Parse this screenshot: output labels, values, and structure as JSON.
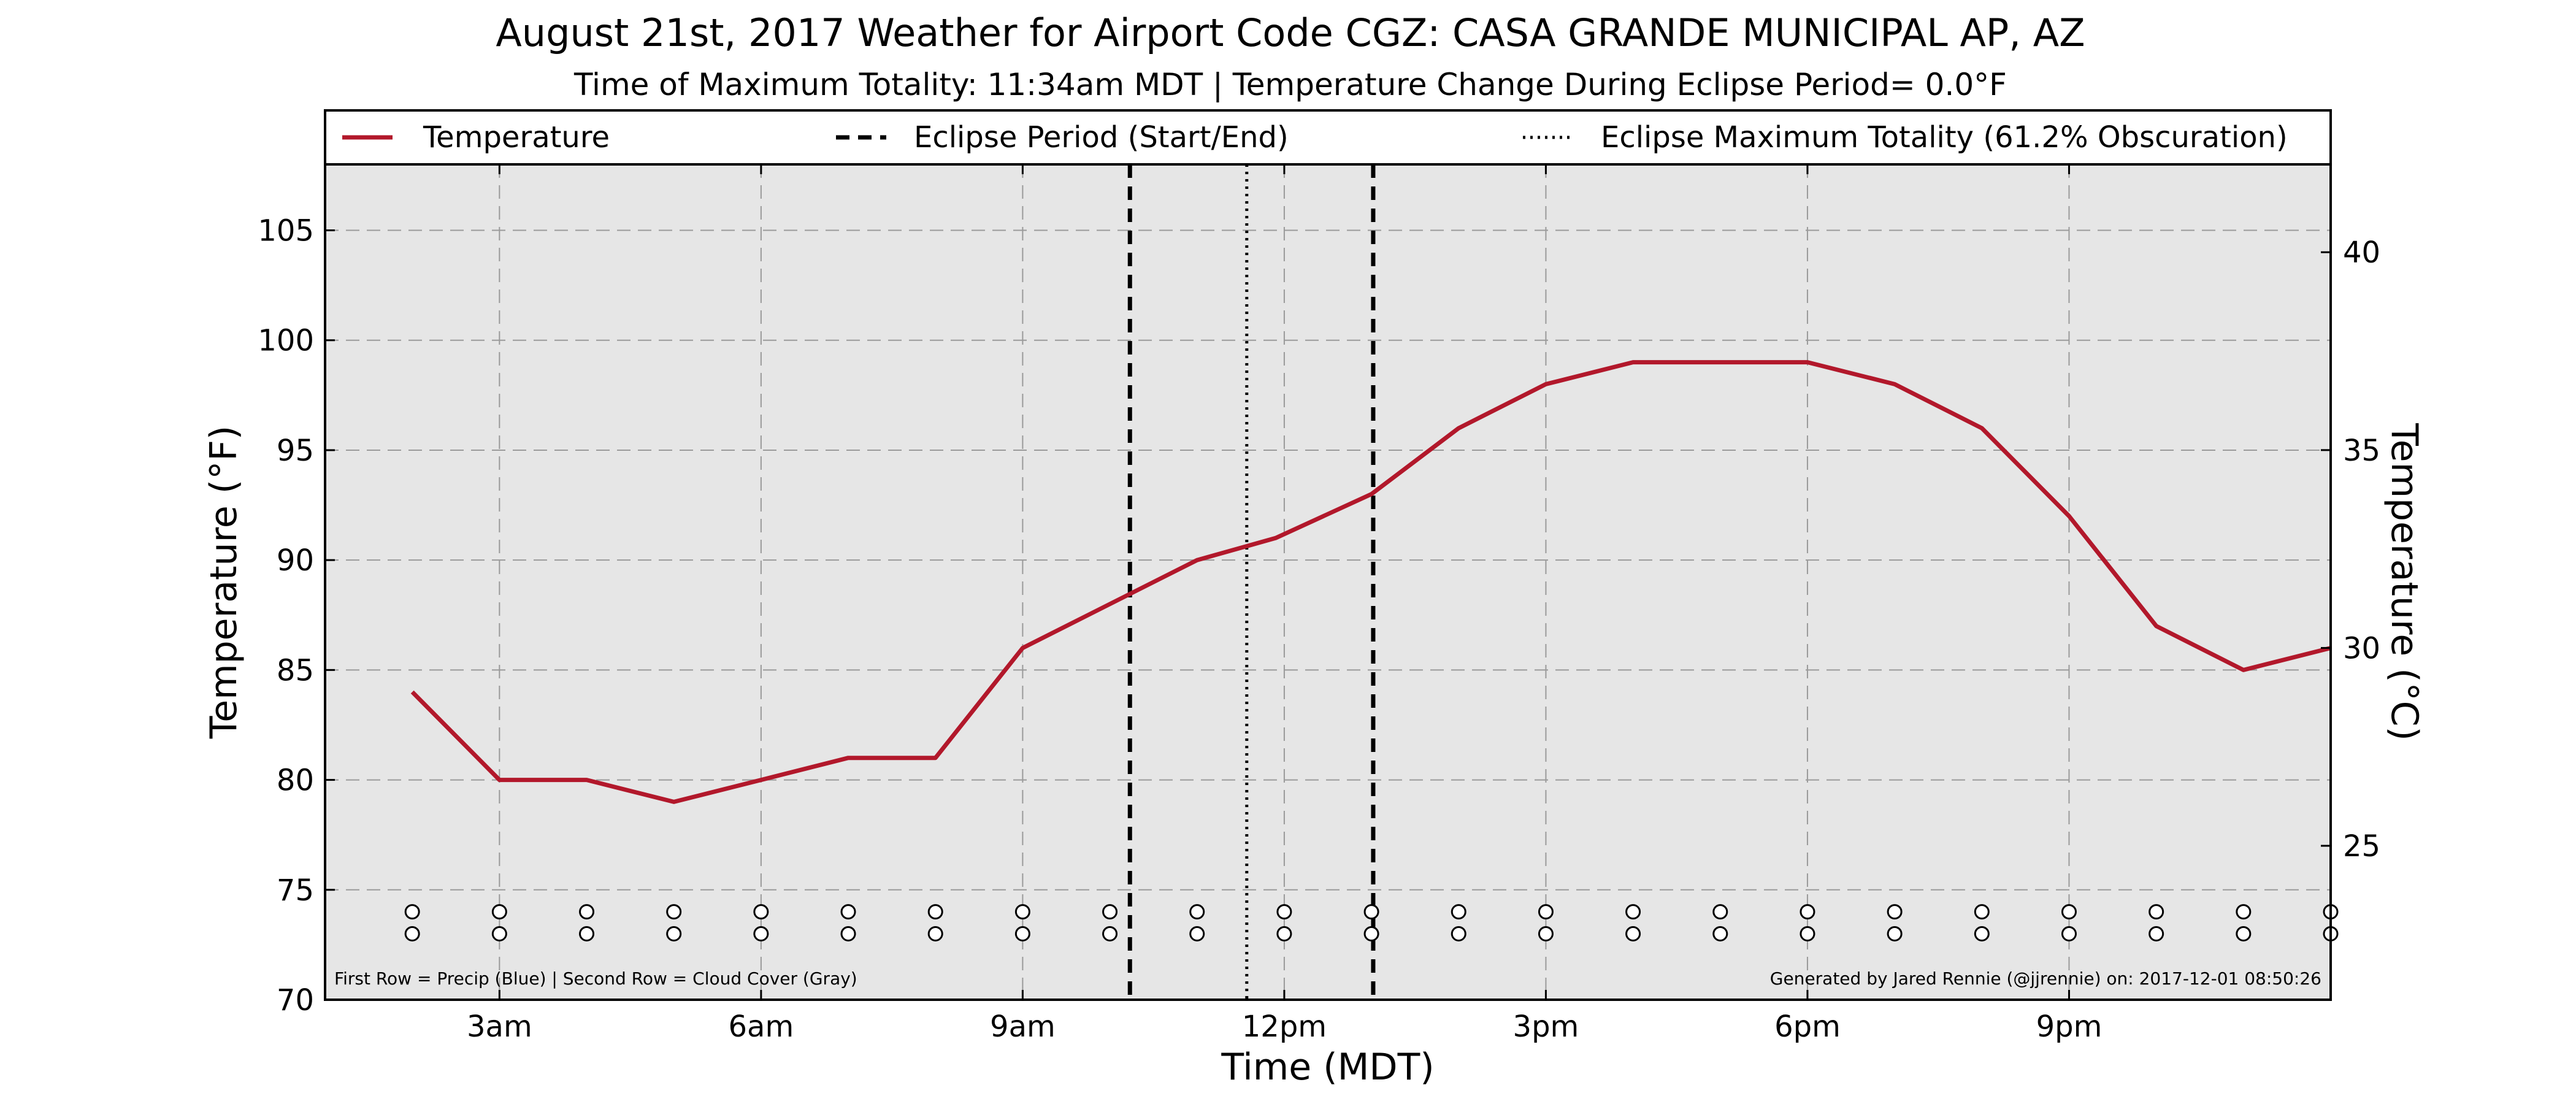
{
  "chart_data": {
    "type": "line",
    "title": "August 21st, 2017 Weather for Airport Code CGZ: CASA GRANDE MUNICIPAL AP, AZ",
    "subtitle": "Time of Maximum Totality: 11:34am MDT | Temperature Change During Eclipse Period= 0.0°F",
    "xlabel": "Time (MDT)",
    "ylabel": "Temperature (°F)",
    "ylabel_right": "Temperature (°C)",
    "xlim": [
      1.0,
      24.0
    ],
    "ylim": [
      70,
      108
    ],
    "ylim_right_c": [
      21.11,
      42.22
    ],
    "grid": true,
    "legend_position": "top",
    "x_ticks": [
      {
        "x": 3,
        "label": "3am"
      },
      {
        "x": 6,
        "label": "6am"
      },
      {
        "x": 9,
        "label": "9am"
      },
      {
        "x": 12,
        "label": "12pm"
      },
      {
        "x": 15,
        "label": "3pm"
      },
      {
        "x": 18,
        "label": "6pm"
      },
      {
        "x": 21,
        "label": "9pm"
      }
    ],
    "y_ticks": [
      70,
      75,
      80,
      85,
      90,
      95,
      100,
      105
    ],
    "y_ticks_right": [
      25,
      30,
      35,
      40
    ],
    "series": [
      {
        "name": "Temperature",
        "color": "#b2182b",
        "x": [
          2,
          3,
          4,
          5,
          6,
          7,
          8,
          9,
          11,
          11.9,
          13,
          14,
          15,
          16,
          17,
          18,
          19,
          20,
          21,
          22,
          23,
          24
        ],
        "y": [
          84,
          80,
          80,
          79,
          80,
          81,
          81,
          86,
          90,
          91,
          93,
          96,
          98,
          99,
          99,
          99,
          98,
          96,
          92,
          87,
          85,
          86
        ]
      }
    ],
    "eclipse_start": 10.23,
    "eclipse_end": 13.02,
    "eclipse_max": 11.57,
    "legend": [
      {
        "label": "Temperature",
        "style": "solid"
      },
      {
        "label": "Eclipse Period (Start/End)",
        "style": "dashed"
      },
      {
        "label": "Eclipse Maximum Totality (61.2% Obscuration)",
        "style": "dotted"
      }
    ],
    "marker_rows": {
      "x": [
        2,
        3,
        4,
        5,
        6,
        7,
        8,
        9,
        10,
        11,
        12,
        13,
        14,
        15,
        16,
        17,
        18,
        19,
        20,
        21,
        22,
        23,
        24
      ],
      "row1_y": 74.0,
      "row2_y": 73.0
    },
    "footnote_left": "First Row = Precip (Blue) | Second Row = Cloud Cover (Gray)",
    "footnote_right": "Generated by Jared Rennie (@jjrennie) on: 2017-12-01 08:50:26"
  }
}
